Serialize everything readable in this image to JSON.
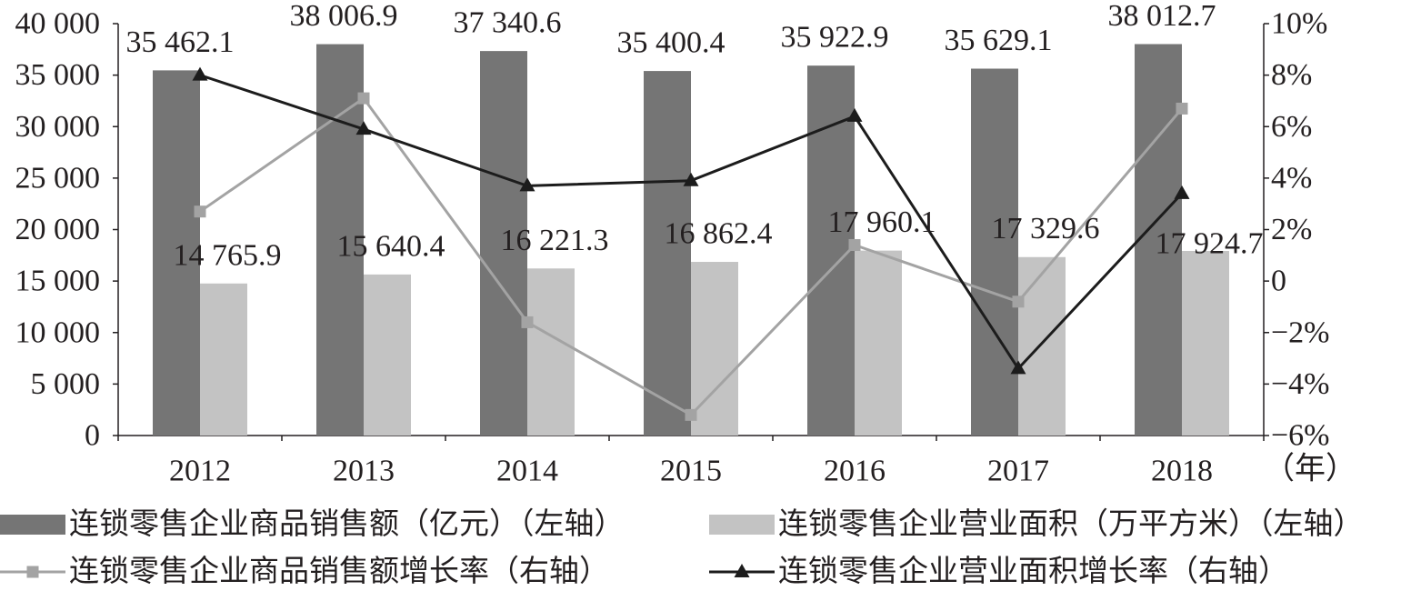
{
  "chart_data": {
    "type": "bar",
    "categories": [
      "2012",
      "2013",
      "2014",
      "2015",
      "2016",
      "2017",
      "2018"
    ],
    "xlabel": "（年）",
    "legend": "bottom",
    "grid": false,
    "y_left": {
      "range": [
        0,
        40000
      ],
      "tick_labels": [
        "0",
        "5 000",
        "10 000",
        "15 000",
        "20 000",
        "25 000",
        "30 000",
        "35 000",
        "40 000"
      ]
    },
    "y_right": {
      "range": [
        -6,
        10
      ],
      "unit": "%",
      "tick_labels": [
        "−6%",
        "−4%",
        "−2%",
        "0",
        "2%",
        "4%",
        "6%",
        "8%",
        "10%"
      ]
    },
    "series": [
      {
        "name": "连锁零售企业商品销售额（亿元）（左轴）",
        "type": "bar",
        "axis": "left",
        "color": "#757575",
        "values": [
          35462.1,
          38006.9,
          37340.6,
          35400.4,
          35922.9,
          35629.1,
          38012.7
        ],
        "data_labels": [
          "35 462.1",
          "38 006.9",
          "37 340.6",
          "35 400.4",
          "35 922.9",
          "35 629.1",
          "38 012.7"
        ]
      },
      {
        "name": "连锁零售企业营业面积（万平方米）（左轴）",
        "type": "bar",
        "axis": "left",
        "color": "#c3c3c3",
        "values": [
          14765.9,
          15640.4,
          16221.3,
          16862.4,
          17960.1,
          17329.6,
          17924.7
        ],
        "data_labels": [
          "14 765.9",
          "15 640.4",
          "16 221.3",
          "16 862.4",
          "17 960.1",
          "17 329.6",
          "17 924.7"
        ]
      },
      {
        "name": "连锁零售企业商品销售额增长率（右轴）",
        "type": "line",
        "axis": "right",
        "marker": "square",
        "color": "#a3a3a3",
        "values": [
          2.7,
          7.1,
          -1.6,
          -5.2,
          1.4,
          -0.8,
          6.7
        ]
      },
      {
        "name": "连锁零售企业营业面积增长率（右轴）",
        "type": "line",
        "axis": "right",
        "marker": "triangle",
        "color": "#1c1c1c",
        "values": [
          8.0,
          5.9,
          3.7,
          3.9,
          6.4,
          -3.4,
          3.4
        ]
      }
    ]
  }
}
